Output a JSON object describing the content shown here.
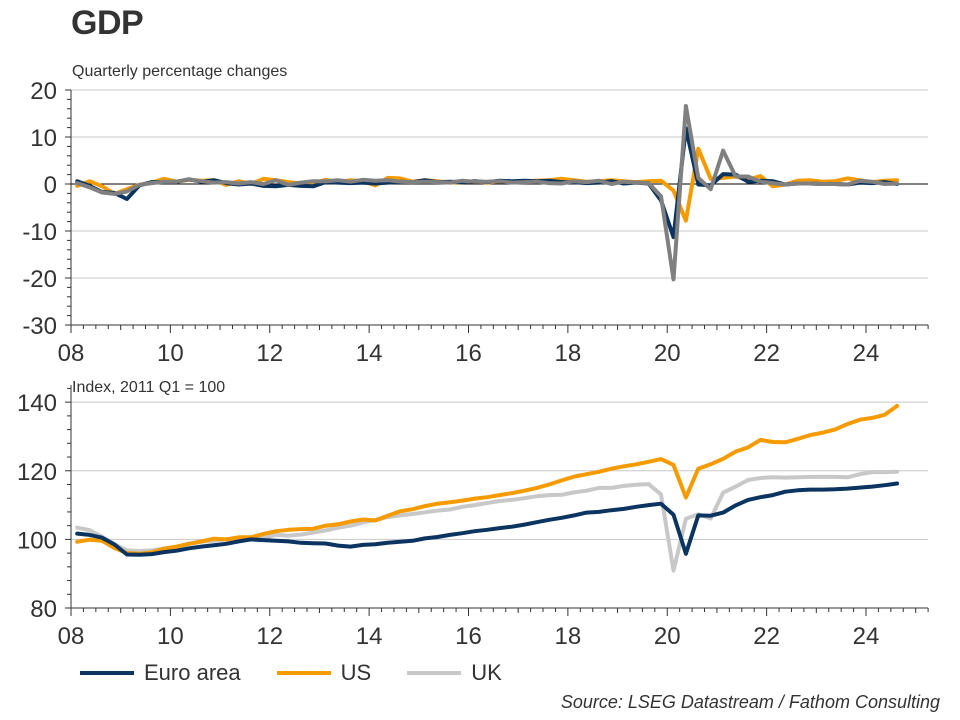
{
  "title": "GDP",
  "source": "Source: LSEG Datastream / Fathom Consulting",
  "colors": {
    "euro": "#0b3461",
    "us": "#f59b00",
    "uk_top": "#808080",
    "uk_bottom": "#c8c8c8",
    "grid": "#c8c8c8",
    "axis": "#333333"
  },
  "legend": [
    {
      "label": "Euro area",
      "color": "#0b3461"
    },
    {
      "label": "US",
      "color": "#f59b00"
    },
    {
      "label": "UK",
      "color": "#c8c8c8"
    }
  ],
  "chart_data": [
    {
      "type": "line",
      "subtitle": "Quarterly percentage changes",
      "xlabel": "",
      "ylabel": "",
      "xlim": [
        2008,
        2025.3
      ],
      "ylim": [
        -30,
        20
      ],
      "yticks": [
        20,
        10,
        0,
        -10,
        -20,
        -30
      ],
      "ytick_labels": [
        "20",
        "10",
        "0",
        "-10",
        "-20",
        "-30"
      ],
      "xticks": [
        2008,
        2010,
        2012,
        2014,
        2016,
        2018,
        2020,
        2022,
        2024
      ],
      "xtick_labels": [
        "08",
        "10",
        "12",
        "14",
        "16",
        "18",
        "20",
        "22",
        "24"
      ],
      "grid": "horizontal",
      "x_start": 2008.125,
      "x_step": 0.25,
      "series": [
        {
          "name": "Euro area",
          "values": [
            0.6,
            -0.4,
            -1.7,
            -1.9,
            -3.2,
            -0.3,
            0.4,
            0.4,
            0.5,
            1.0,
            0.5,
            0.8,
            0.2,
            -0.1,
            0.1,
            -0.4,
            -0.5,
            -0.2,
            -0.4,
            -0.5,
            0.4,
            0.3,
            0.2,
            0.3,
            0.1,
            0.3,
            0.5,
            0.4,
            0.8,
            0.4,
            0.5,
            0.4,
            0.6,
            0.4,
            0.7,
            0.6,
            0.7,
            0.6,
            0.7,
            0.4,
            0.4,
            0.2,
            0.3,
            0.6,
            0.1,
            0.3,
            0.1,
            -3.5,
            -11.3,
            11.9,
            -0.1,
            -0.3,
            2.1,
            2.0,
            0.5,
            0.7,
            0.6,
            -0.1,
            0.1,
            0.1,
            0.0,
            0.0,
            -0.1,
            0.3,
            0.2,
            0.4,
            0.0
          ]
        },
        {
          "name": "US",
          "values": [
            -0.4,
            0.6,
            -0.5,
            -2.1,
            -1.1,
            -0.2,
            0.3,
            1.1,
            0.5,
            0.9,
            0.7,
            0.8,
            -0.2,
            0.6,
            0.0,
            1.1,
            0.8,
            0.4,
            0.1,
            0.1,
            0.9,
            0.4,
            0.8,
            0.6,
            -0.3,
            1.3,
            1.2,
            0.5,
            0.8,
            0.6,
            0.3,
            0.4,
            0.6,
            0.3,
            0.6,
            0.5,
            0.6,
            0.7,
            0.8,
            1.1,
            0.8,
            0.5,
            0.6,
            0.8,
            0.6,
            0.4,
            0.6,
            0.7,
            -1.4,
            -7.8,
            7.5,
            1.1,
            1.3,
            1.6,
            0.9,
            1.7,
            -0.5,
            -0.1,
            0.7,
            0.8,
            0.5,
            0.6,
            1.2,
            0.8,
            0.4,
            0.7,
            0.8
          ]
        },
        {
          "name": "UK",
          "values": [
            0.2,
            -0.7,
            -1.8,
            -2.1,
            -1.6,
            -0.2,
            0.2,
            0.5,
            0.5,
            1.0,
            0.6,
            0.3,
            0.4,
            0.1,
            0.4,
            0.0,
            0.8,
            -0.2,
            0.3,
            0.6,
            0.6,
            0.8,
            0.5,
            0.9,
            0.7,
            0.8,
            0.5,
            0.4,
            0.5,
            0.4,
            0.3,
            0.7,
            0.5,
            0.5,
            0.6,
            0.3,
            0.4,
            0.5,
            0.2,
            0.1,
            0.6,
            0.4,
            0.7,
            0.0,
            0.5,
            0.3,
            0.2,
            -2.6,
            -20.3,
            16.6,
            1.3,
            -1.1,
            7.1,
            1.6,
            1.6,
            0.5,
            0.2,
            -0.1,
            0.1,
            0.1,
            0.0,
            0.0,
            -0.1,
            0.7,
            0.5,
            0.0,
            0.1
          ]
        }
      ]
    },
    {
      "type": "line",
      "subtitle": "Index, 2011 Q1 = 100",
      "xlabel": "",
      "ylabel": "",
      "xlim": [
        2008,
        2025.3
      ],
      "ylim": [
        80,
        145
      ],
      "yticks": [
        140,
        120,
        100,
        80
      ],
      "ytick_labels": [
        "140",
        "120",
        "100",
        "80"
      ],
      "xticks": [
        2008,
        2010,
        2012,
        2014,
        2016,
        2018,
        2020,
        2022,
        2024
      ],
      "xtick_labels": [
        "08",
        "10",
        "12",
        "14",
        "16",
        "18",
        "20",
        "22",
        "24"
      ],
      "grid": "horizontal",
      "x_start": 2008.125,
      "x_step": 0.25,
      "series": [
        {
          "name": "Euro area",
          "values": [
            101.7,
            101.3,
            100.5,
            98.5,
            95.6,
            95.5,
            95.7,
            96.3,
            96.7,
            97.4,
            97.9,
            98.3,
            98.7,
            99.4,
            100.0,
            99.8,
            99.6,
            99.4,
            99.0,
            98.9,
            98.8,
            98.2,
            97.9,
            98.4,
            98.6,
            99.0,
            99.3,
            99.6,
            100.3,
            100.7,
            101.3,
            101.8,
            102.4,
            102.8,
            103.3,
            103.7,
            104.3,
            105.0,
            105.7,
            106.3,
            107.0,
            107.8,
            108.0,
            108.5,
            108.9,
            109.5,
            110.0,
            110.4,
            107.2,
            95.8,
            107.0,
            106.9,
            107.8,
            109.9,
            111.5,
            112.3,
            112.9,
            113.9,
            114.3,
            114.5,
            114.5,
            114.6,
            114.8,
            115.1,
            115.4,
            115.8,
            116.3
          ]
        },
        {
          "name": "US",
          "values": [
            99.3,
            99.9,
            99.6,
            97.5,
            96.0,
            95.8,
            96.2,
            97.3,
            97.9,
            98.7,
            99.4,
            100.2,
            100.0,
            100.6,
            100.6,
            101.6,
            102.4,
            102.8,
            103.0,
            103.1,
            104.0,
            104.4,
            105.2,
            105.8,
            105.5,
            106.9,
            108.2,
            108.8,
            109.7,
            110.4,
            110.8,
            111.3,
            111.9,
            112.3,
            112.9,
            113.5,
            114.2,
            115.0,
            116.0,
            117.2,
            118.3,
            119.0,
            119.7,
            120.6,
            121.3,
            121.9,
            122.6,
            123.4,
            121.7,
            112.2,
            120.6,
            121.9,
            123.5,
            125.6,
            126.8,
            129.0,
            128.4,
            128.3,
            129.3,
            130.4,
            131.1,
            132.0,
            133.6,
            134.9,
            135.4,
            136.3,
            138.9
          ]
        },
        {
          "name": "UK",
          "values": [
            103.4,
            102.7,
            100.8,
            98.6,
            96.8,
            96.6,
            96.8,
            97.3,
            97.8,
            98.7,
            99.3,
            99.6,
            100.0,
            100.1,
            100.5,
            100.5,
            101.3,
            101.1,
            101.4,
            102.0,
            102.6,
            103.4,
            104.0,
            104.9,
            105.7,
            106.5,
            107.0,
            107.4,
            107.9,
            108.4,
            108.7,
            109.5,
            110.0,
            110.6,
            111.2,
            111.5,
            112.0,
            112.6,
            112.9,
            113.0,
            113.7,
            114.2,
            115.0,
            115.0,
            115.6,
            115.9,
            116.1,
            113.1,
            90.9,
            106.0,
            107.3,
            106.1,
            113.6,
            115.4,
            117.3,
            117.9,
            118.1,
            118.0,
            118.1,
            118.2,
            118.2,
            118.2,
            118.1,
            119.0,
            119.6,
            119.6,
            119.7
          ]
        }
      ]
    }
  ]
}
